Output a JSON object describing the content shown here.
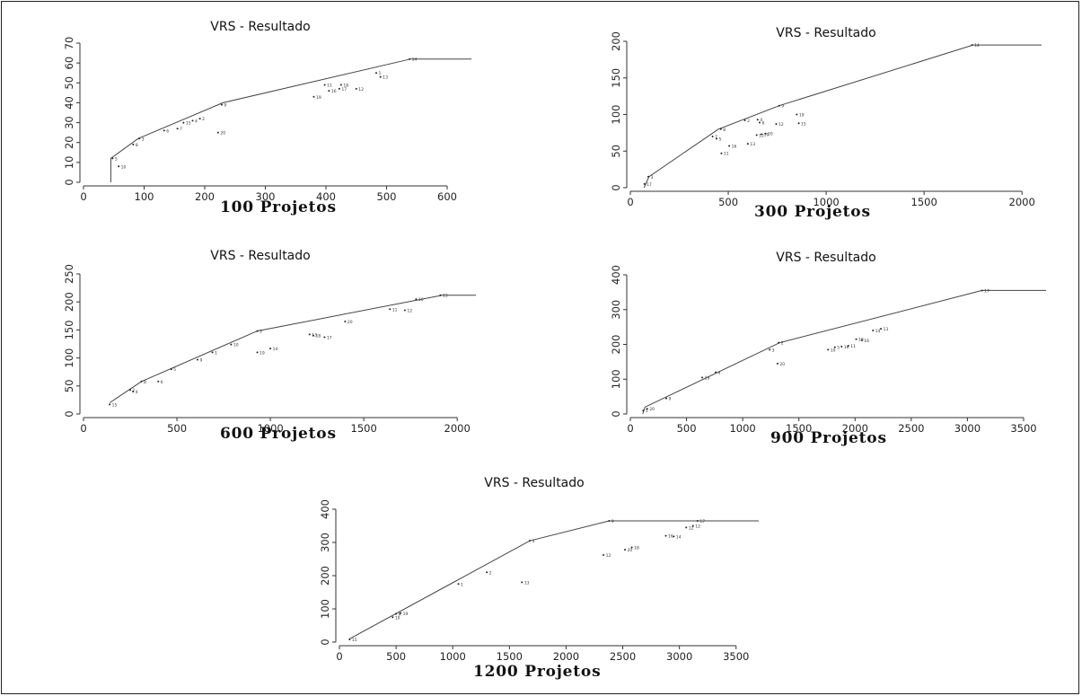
{
  "captions": [
    "100 Projetos",
    "300 Projetos",
    "600 Projetos",
    "900 Projetos",
    "1200 Projetos"
  ],
  "chart_data": [
    {
      "type": "scatter",
      "title": "VRS - Resultado",
      "xlim": [
        0,
        640
      ],
      "ylim": [
        0,
        70
      ],
      "xticks": [
        0,
        100,
        200,
        300,
        400,
        500,
        600
      ],
      "yticks": [
        0,
        10,
        20,
        30,
        40,
        50,
        60,
        70
      ],
      "frontier": [
        [
          45,
          0
        ],
        [
          45,
          12
        ],
        [
          90,
          22
        ],
        [
          230,
          40
        ],
        [
          540,
          62
        ],
        [
          640,
          62
        ]
      ],
      "points": [
        {
          "label": "5",
          "x": 48,
          "y": 12
        },
        {
          "label": "10",
          "x": 58,
          "y": 8
        },
        {
          "label": "8",
          "x": 82,
          "y": 19
        },
        {
          "label": "3",
          "x": 92,
          "y": 22
        },
        {
          "label": "6",
          "x": 133,
          "y": 26
        },
        {
          "label": "7",
          "x": 155,
          "y": 27
        },
        {
          "label": "15",
          "x": 165,
          "y": 30
        },
        {
          "label": "4",
          "x": 180,
          "y": 31
        },
        {
          "label": "2",
          "x": 192,
          "y": 32
        },
        {
          "label": "20",
          "x": 222,
          "y": 25
        },
        {
          "label": "9",
          "x": 228,
          "y": 39
        },
        {
          "label": "19",
          "x": 380,
          "y": 43
        },
        {
          "label": "11",
          "x": 398,
          "y": 49
        },
        {
          "label": "16",
          "x": 405,
          "y": 46
        },
        {
          "label": "18",
          "x": 425,
          "y": 49
        },
        {
          "label": "17",
          "x": 422,
          "y": 47
        },
        {
          "label": "12",
          "x": 450,
          "y": 47
        },
        {
          "label": "1",
          "x": 483,
          "y": 55
        },
        {
          "label": "13",
          "x": 490,
          "y": 53
        },
        {
          "label": "14",
          "x": 538,
          "y": 62
        }
      ]
    },
    {
      "type": "scatter",
      "title": "VRS - Resultado",
      "xlim": [
        0,
        2100
      ],
      "ylim": [
        0,
        200
      ],
      "xticks": [
        0,
        500,
        1000,
        1500,
        2000
      ],
      "yticks": [
        0,
        50,
        100,
        150,
        200
      ],
      "frontier": [
        [
          70,
          0
        ],
        [
          95,
          15
        ],
        [
          450,
          80
        ],
        [
          760,
          112
        ],
        [
          1750,
          195
        ],
        [
          2100,
          195
        ]
      ],
      "points": [
        {
          "label": "17",
          "x": 72,
          "y": 5
        },
        {
          "label": "3",
          "x": 92,
          "y": 15
        },
        {
          "label": "7",
          "x": 420,
          "y": 70
        },
        {
          "label": "5",
          "x": 440,
          "y": 67
        },
        {
          "label": "8",
          "x": 462,
          "y": 80
        },
        {
          "label": "11",
          "x": 465,
          "y": 47
        },
        {
          "label": "16",
          "x": 505,
          "y": 57
        },
        {
          "label": "2",
          "x": 585,
          "y": 92
        },
        {
          "label": "13",
          "x": 600,
          "y": 60
        },
        {
          "label": "4",
          "x": 650,
          "y": 93
        },
        {
          "label": "12",
          "x": 645,
          "y": 72
        },
        {
          "label": "6",
          "x": 660,
          "y": 89
        },
        {
          "label": "10",
          "x": 670,
          "y": 73
        },
        {
          "label": "20",
          "x": 690,
          "y": 74
        },
        {
          "label": "9",
          "x": 760,
          "y": 112
        },
        {
          "label": "12",
          "x": 745,
          "y": 87
        },
        {
          "label": "19",
          "x": 850,
          "y": 100
        },
        {
          "label": "15",
          "x": 860,
          "y": 88
        },
        {
          "label": "14",
          "x": 1745,
          "y": 195
        }
      ]
    },
    {
      "type": "scatter",
      "title": "VRS - Resultado",
      "xlim": [
        0,
        2100
      ],
      "ylim": [
        0,
        250
      ],
      "xticks": [
        0,
        500,
        1000,
        1500,
        2000
      ],
      "yticks": [
        0,
        50,
        100,
        150,
        200,
        250
      ],
      "frontier": [
        [
          140,
          20
        ],
        [
          310,
          58
        ],
        [
          930,
          148
        ],
        [
          1920,
          212
        ],
        [
          2100,
          212
        ]
      ],
      "points": [
        {
          "label": "15",
          "x": 140,
          "y": 17
        },
        {
          "label": "2",
          "x": 250,
          "y": 43
        },
        {
          "label": "4",
          "x": 265,
          "y": 40
        },
        {
          "label": "8",
          "x": 310,
          "y": 58
        },
        {
          "label": "6",
          "x": 400,
          "y": 58
        },
        {
          "label": "5",
          "x": 470,
          "y": 80
        },
        {
          "label": "9",
          "x": 610,
          "y": 97
        },
        {
          "label": "1",
          "x": 690,
          "y": 110
        },
        {
          "label": "10",
          "x": 790,
          "y": 124
        },
        {
          "label": "3",
          "x": 930,
          "y": 148
        },
        {
          "label": "19",
          "x": 930,
          "y": 110
        },
        {
          "label": "14",
          "x": 1000,
          "y": 117
        },
        {
          "label": "13",
          "x": 1210,
          "y": 142
        },
        {
          "label": "18",
          "x": 1230,
          "y": 140
        },
        {
          "label": "17",
          "x": 1290,
          "y": 137
        },
        {
          "label": "20",
          "x": 1400,
          "y": 165
        },
        {
          "label": "11",
          "x": 1640,
          "y": 187
        },
        {
          "label": "12",
          "x": 1720,
          "y": 185
        },
        {
          "label": "16",
          "x": 1780,
          "y": 205
        },
        {
          "label": "13",
          "x": 1910,
          "y": 212
        }
      ]
    },
    {
      "type": "scatter",
      "title": "VRS - Resultado",
      "xlim": [
        0,
        3700
      ],
      "ylim": [
        0,
        400
      ],
      "xticks": [
        0,
        500,
        1000,
        1500,
        2000,
        2500,
        3000,
        3500
      ],
      "yticks": [
        0,
        100,
        200,
        300,
        400
      ],
      "frontier": [
        [
          110,
          0
        ],
        [
          130,
          20
        ],
        [
          1330,
          205
        ],
        [
          3130,
          355
        ],
        [
          3700,
          355
        ]
      ],
      "points": [
        {
          "label": "5",
          "x": 115,
          "y": 10
        },
        {
          "label": "20",
          "x": 150,
          "y": 15
        },
        {
          "label": "9",
          "x": 320,
          "y": 45
        },
        {
          "label": "19",
          "x": 640,
          "y": 105
        },
        {
          "label": "4",
          "x": 760,
          "y": 120
        },
        {
          "label": "3",
          "x": 1240,
          "y": 185
        },
        {
          "label": "2",
          "x": 1320,
          "y": 205
        },
        {
          "label": "20",
          "x": 1310,
          "y": 145
        },
        {
          "label": "10",
          "x": 1760,
          "y": 185
        },
        {
          "label": "5",
          "x": 1820,
          "y": 192
        },
        {
          "label": "16",
          "x": 1880,
          "y": 194
        },
        {
          "label": "11",
          "x": 1940,
          "y": 196
        },
        {
          "label": "18",
          "x": 2010,
          "y": 215
        },
        {
          "label": "16",
          "x": 2060,
          "y": 212
        },
        {
          "label": "14",
          "x": 2160,
          "y": 240
        },
        {
          "label": "13",
          "x": 2230,
          "y": 245
        },
        {
          "label": "17",
          "x": 3130,
          "y": 355
        }
      ]
    },
    {
      "type": "scatter",
      "title": "VRS - Resultado",
      "xlim": [
        0,
        3700
      ],
      "ylim": [
        0,
        400
      ],
      "xticks": [
        0,
        500,
        1000,
        1500,
        2000,
        2500,
        3000,
        3500
      ],
      "yticks": [
        0,
        100,
        200,
        300,
        400
      ],
      "frontier": [
        [
          90,
          10
        ],
        [
          1680,
          305
        ],
        [
          2380,
          365
        ],
        [
          3700,
          365
        ]
      ],
      "points": [
        {
          "label": "15",
          "x": 90,
          "y": 8
        },
        {
          "label": "10",
          "x": 470,
          "y": 75
        },
        {
          "label": "6",
          "x": 500,
          "y": 85
        },
        {
          "label": "19",
          "x": 540,
          "y": 87
        },
        {
          "label": "1",
          "x": 1050,
          "y": 175
        },
        {
          "label": "2",
          "x": 1300,
          "y": 210
        },
        {
          "label": "13",
          "x": 1610,
          "y": 180
        },
        {
          "label": "3",
          "x": 1680,
          "y": 305
        },
        {
          "label": "12",
          "x": 2330,
          "y": 262
        },
        {
          "label": "20",
          "x": 2520,
          "y": 278
        },
        {
          "label": "18",
          "x": 2580,
          "y": 285
        },
        {
          "label": "9",
          "x": 2380,
          "y": 365
        },
        {
          "label": "16",
          "x": 2880,
          "y": 320
        },
        {
          "label": "14",
          "x": 2950,
          "y": 318
        },
        {
          "label": "12",
          "x": 3060,
          "y": 345
        },
        {
          "label": "12",
          "x": 3120,
          "y": 350
        },
        {
          "label": "17",
          "x": 3160,
          "y": 365
        }
      ]
    }
  ]
}
